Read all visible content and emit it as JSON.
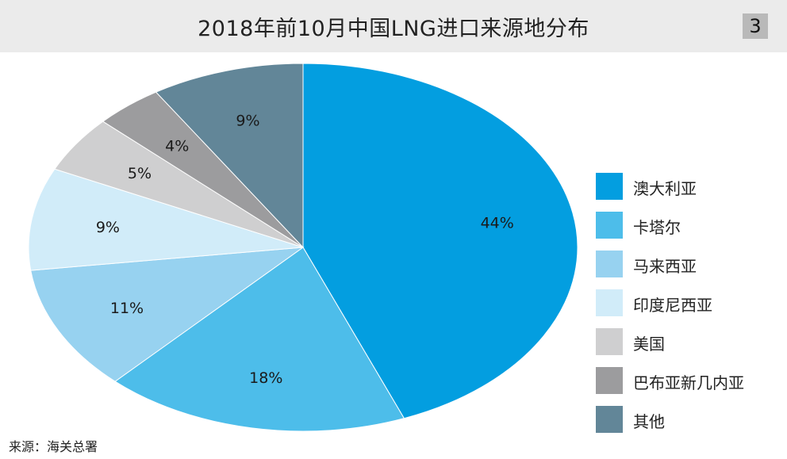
{
  "header": {
    "title": "2018年前10月中国LNG进口来源地分布",
    "figure_number": "3"
  },
  "chart_data": {
    "type": "pie",
    "title": "2018年前10月中国LNG进口来源地分布",
    "categories": [
      "澳大利亚",
      "卡塔尔",
      "马来西亚",
      "印度尼西亚",
      "美国",
      "巴布亚新几内亚",
      "其他"
    ],
    "values": [
      44,
      18,
      11,
      9,
      5,
      4,
      9
    ],
    "value_labels": [
      "44%",
      "18%",
      "11%",
      "9%",
      "5%",
      "4%",
      "9%"
    ],
    "unit": "%",
    "colors": [
      "#039ee0",
      "#4dbdea",
      "#97d2f0",
      "#d1ecf9",
      "#cfcfd0",
      "#9c9c9e",
      "#628698"
    ],
    "start_angle_deg": 0,
    "direction": "clockwise",
    "legend_position": "right"
  },
  "footer": {
    "source": "来源：海关总署"
  }
}
